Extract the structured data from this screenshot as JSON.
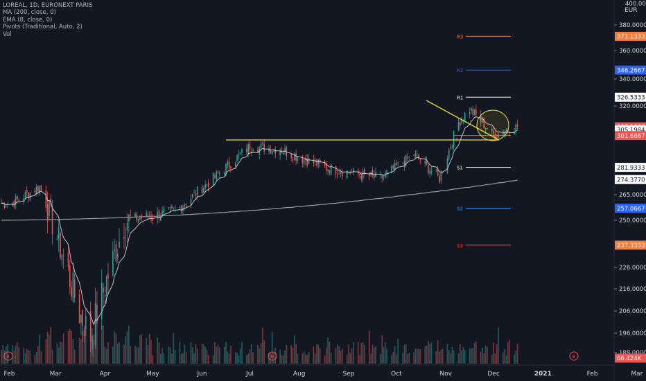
{
  "legend": {
    "line1": "LOREAL, 1D, EURONEXT PARIS",
    "line2": "MA (200, close, 0)",
    "line3": "EMA (8, close, 0)",
    "line4": "Pivots (Traditional, Auto, 2)",
    "line5": "Vol"
  },
  "colors": {
    "background": "#131722",
    "up": "#26a69a",
    "down": "#ef5350",
    "ma200": "#b2b5be",
    "ema8": "#d1d4dc",
    "trendline": "#f0e130",
    "axis_text": "#d1d4dc",
    "r3": "#f57c3a",
    "r2": "#2962ff",
    "r1": "#ffffff",
    "p": "#ef5350",
    "s1": "#ffffff",
    "s2": "#2196f3",
    "s3": "#f44336"
  },
  "chart_data": {
    "type": "candlestick",
    "symbol": "LOREAL",
    "interval": "1D",
    "exchange": "EURONEXT PARIS",
    "currency": "EUR",
    "y_ticks": [
      "380.0000",
      "360.0000",
      "340.0000",
      "320.0000",
      "265.0000",
      "250.0000",
      "226.0000",
      "216.0000",
      "206.0000",
      "196.0000",
      "188.0000"
    ],
    "y_top_label": "400.0000",
    "price_labels": [
      {
        "text": "371.1333",
        "kind": "r3",
        "value": 371.1333
      },
      {
        "text": "346.2667",
        "kind": "r2",
        "value": 346.2667
      },
      {
        "text": "326.5333",
        "kind": "r1",
        "value": 326.5333
      },
      {
        "text": "307.1000",
        "kind": "last",
        "value": 307.1
      },
      {
        "text": "305.1984",
        "kind": "ema",
        "value": 305.1984
      },
      {
        "text": "301.6667",
        "kind": "p",
        "value": 301.6667
      },
      {
        "text": "281.9333",
        "kind": "s1",
        "value": 281.9333
      },
      {
        "text": "274.3770",
        "kind": "ma",
        "value": 274.377
      },
      {
        "text": "257.0667",
        "kind": "s2",
        "value": 257.0667
      },
      {
        "text": "237.3333",
        "kind": "s3",
        "value": 237.3333
      },
      {
        "text": "66.424K",
        "kind": "vol",
        "value": 66424
      }
    ],
    "x_labels": [
      "Feb",
      "Mar",
      "Apr",
      "May",
      "Jun",
      "Jul",
      "Aug",
      "Sep",
      "Oct",
      "Nov",
      "Dec",
      "2021",
      "Feb",
      "Mar"
    ],
    "pivots": [
      {
        "name": "R3",
        "value": 371.1333
      },
      {
        "name": "R2",
        "value": 346.2667
      },
      {
        "name": "R1",
        "value": 326.5333
      },
      {
        "name": "P",
        "value": 301.6667
      },
      {
        "name": "S1",
        "value": 281.9333
      },
      {
        "name": "S2",
        "value": 257.0667
      },
      {
        "name": "S3",
        "value": 237.3333
      }
    ],
    "key_closes": [
      {
        "date": "2020-02-03",
        "close": 260
      },
      {
        "date": "2020-02-20",
        "close": 270
      },
      {
        "date": "2020-03-16",
        "close": 205
      },
      {
        "date": "2020-03-23",
        "close": 195
      },
      {
        "date": "2020-04-14",
        "close": 250
      },
      {
        "date": "2020-05-15",
        "close": 255
      },
      {
        "date": "2020-06-08",
        "close": 275
      },
      {
        "date": "2020-07-01",
        "close": 295
      },
      {
        "date": "2020-07-20",
        "close": 293
      },
      {
        "date": "2020-08-17",
        "close": 282
      },
      {
        "date": "2020-09-21",
        "close": 275
      },
      {
        "date": "2020-10-12",
        "close": 290
      },
      {
        "date": "2020-10-28",
        "close": 275
      },
      {
        "date": "2020-11-09",
        "close": 310
      },
      {
        "date": "2020-11-16",
        "close": 318
      },
      {
        "date": "2020-12-01",
        "close": 302
      },
      {
        "date": "2020-12-16",
        "close": 307.1
      }
    ],
    "annotations": [
      "horizontal resistance line ~297",
      "descending trendline from Nov high",
      "highlight circle near last price"
    ]
  }
}
